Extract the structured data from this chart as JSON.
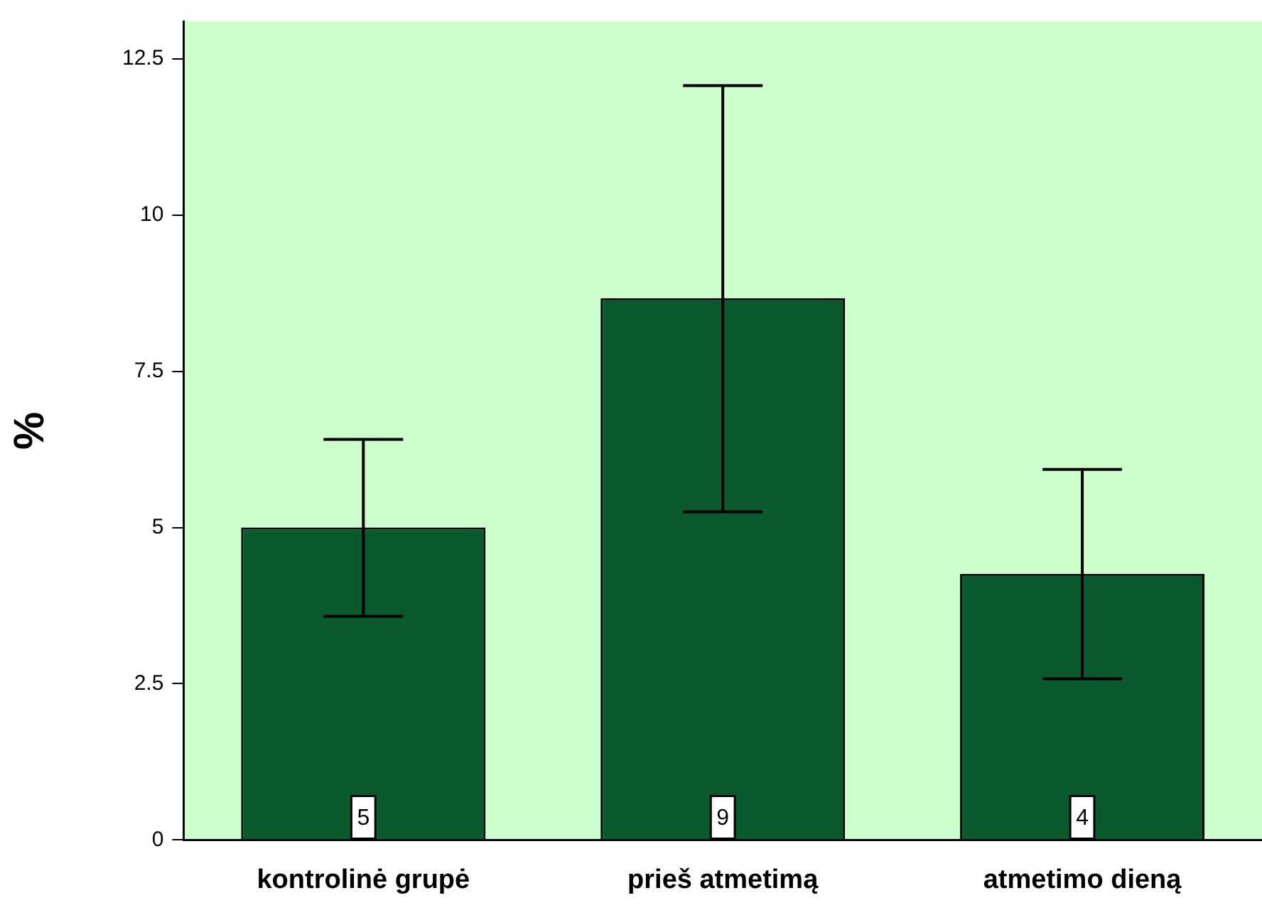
{
  "chart_data": {
    "type": "bar",
    "ylabel": "%",
    "categories": [
      "kontrolinė grupė",
      "prieš atmetimą",
      "atmetimo dieną"
    ],
    "values": [
      5.0,
      8.67,
      4.26
    ],
    "color": "#0b5a2e",
    "errors": [
      [
        3.58,
        6.41
      ],
      [
        5.25,
        12.07
      ],
      [
        2.58,
        5.93
      ]
    ],
    "value_labels": [
      "5",
      "9",
      "4"
    ],
    "ylim": [
      0,
      13.1
    ],
    "yticks": [
      0,
      2.5,
      5,
      7.5,
      10,
      12.5
    ],
    "grid": false,
    "legend": false
  }
}
